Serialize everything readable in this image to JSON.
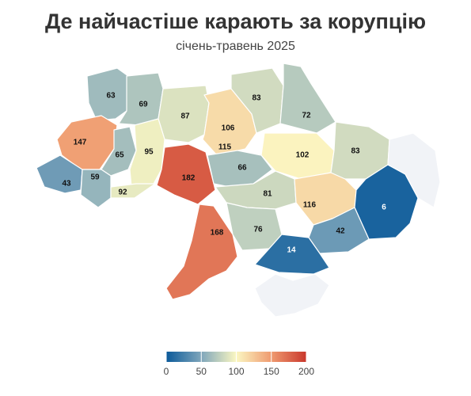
{
  "title": "Де найчастіше карають за корупцію",
  "subtitle": "січень-травень 2025",
  "colors": {
    "scale": [
      "#0b5a9a",
      "#7fa6bb",
      "#fbf7c2",
      "#ef9a6f",
      "#c9372c"
    ],
    "no_data": "#f1f3f7",
    "border": "#ffffff"
  },
  "chart_data": {
    "type": "choropleth",
    "regions": [
      {
        "name": "Волинська",
        "value": 63
      },
      {
        "name": "Рівненська",
        "value": 69
      },
      {
        "name": "Житомирська",
        "value": 87
      },
      {
        "name": "Київ",
        "value": 106
      },
      {
        "name": "Київська",
        "value": 115
      },
      {
        "name": "Чернігівська",
        "value": 83
      },
      {
        "name": "Сумська",
        "value": 72
      },
      {
        "name": "Полтавська",
        "value": 102
      },
      {
        "name": "Харківська",
        "value": 83
      },
      {
        "name": "Львівська",
        "value": 147
      },
      {
        "name": "Тернопільська",
        "value": 65
      },
      {
        "name": "Хмельницька",
        "value": 95
      },
      {
        "name": "Вінницька",
        "value": 182
      },
      {
        "name": "Черкаська",
        "value": 66
      },
      {
        "name": "Закарпатська",
        "value": 43
      },
      {
        "name": "Івано-Франківська",
        "value": 59
      },
      {
        "name": "Чернівецька",
        "value": 92
      },
      {
        "name": "Кіровоградська",
        "value": 81
      },
      {
        "name": "Дніпропетровська",
        "value": 116
      },
      {
        "name": "Донецька",
        "value": 6
      },
      {
        "name": "Одеська",
        "value": 168
      },
      {
        "name": "Миколаївська",
        "value": 76
      },
      {
        "name": "Запорізька",
        "value": 42
      },
      {
        "name": "Херсонська",
        "value": 14
      },
      {
        "name": "Луганська",
        "value": null
      },
      {
        "name": "АР Крим",
        "value": null
      }
    ],
    "legend": {
      "min": 0,
      "max": 200,
      "ticks": [
        0,
        50,
        100,
        150,
        200
      ]
    }
  }
}
